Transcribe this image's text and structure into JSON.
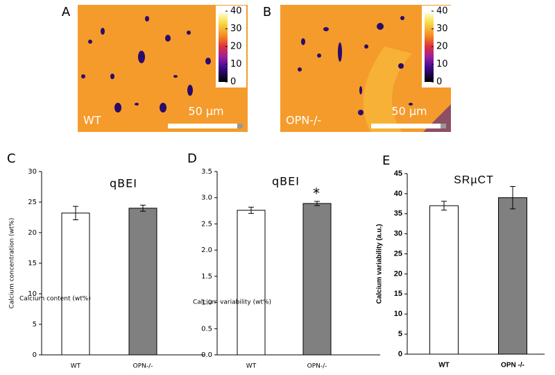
{
  "images": [
    {
      "label": "A",
      "caption": "WT",
      "scale_bar": "50 µm",
      "colorbar_lim": [
        0,
        40
      ],
      "colorbar_ticks": [
        0,
        10,
        20,
        30,
        40
      ]
    },
    {
      "label": "B",
      "caption": "OPN-/-",
      "scale_bar": "50 µm",
      "colorbar_lim": [
        0,
        40
      ],
      "colorbar_ticks": [
        0,
        10,
        20,
        30,
        40
      ]
    }
  ],
  "chart_data": [
    {
      "type": "bar",
      "panel_label": "C",
      "title": "qBEI",
      "ylabel": "Calcium concentration (wt%)",
      "annotations": [
        "Calcium content (wt%)"
      ],
      "categories": [
        "WT",
        "OPN-/-"
      ],
      "values": [
        23.2,
        24.0
      ],
      "errors": [
        1.1,
        0.5
      ],
      "colors": [
        "#ffffff",
        "#808080"
      ],
      "ylim": [
        0,
        30
      ],
      "yticks": [
        0,
        5,
        10,
        15,
        20,
        25,
        30
      ]
    },
    {
      "type": "bar",
      "panel_label": "D",
      "title": "qBEI",
      "annotations": [
        "*",
        "Calcium variability (wt%)"
      ],
      "categories": [
        "WT",
        "OPN-/-"
      ],
      "values": [
        2.76,
        2.89
      ],
      "errors": [
        0.06,
        0.04
      ],
      "colors": [
        "#ffffff",
        "#808080"
      ],
      "ylim": [
        0,
        3.5
      ],
      "yticks": [
        {
          "value": 0,
          "label": "0.0"
        },
        0.5,
        {
          "value": 1,
          "label": "1.0"
        },
        1.5,
        {
          "value": 2,
          "label": "2.0"
        },
        2.5,
        {
          "value": 3,
          "label": "3.0"
        },
        3.5
      ]
    },
    {
      "type": "bar",
      "panel_label": "E",
      "title": "SRµCT",
      "ylabel": "Calcium variability (a.u.)",
      "categories": [
        "WT",
        "OPN -/-"
      ],
      "values": [
        37,
        39
      ],
      "errors": [
        1.1,
        2.8
      ],
      "colors": [
        "#ffffff",
        "#808080"
      ],
      "ylim": [
        0,
        45
      ],
      "yticks": [
        0,
        5,
        10,
        15,
        20,
        25,
        30,
        35,
        40,
        45
      ]
    }
  ]
}
